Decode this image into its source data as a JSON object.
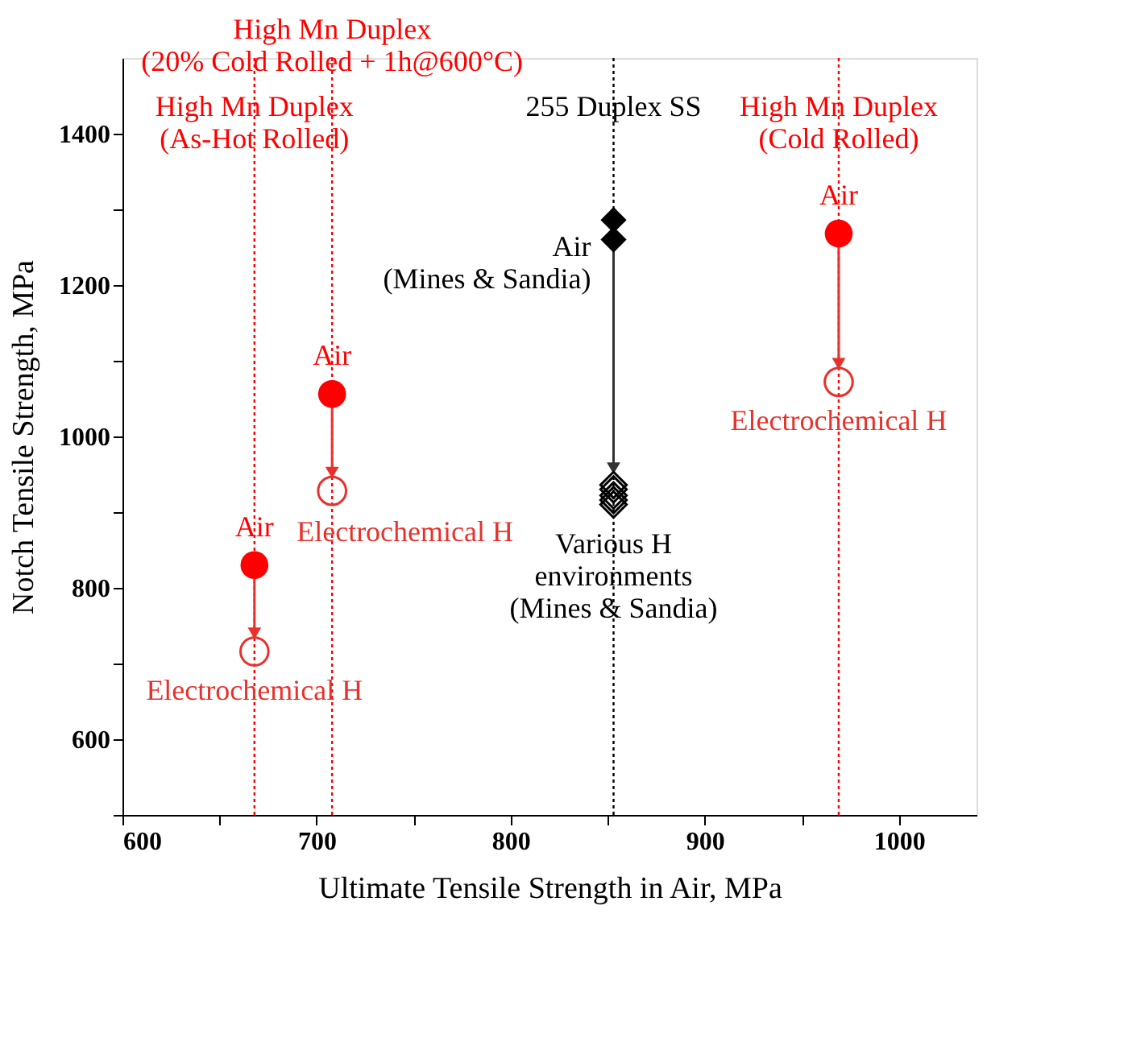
{
  "chart_data": {
    "type": "scatter",
    "xlabel": "Ultimate Tensile Strength in Air, MPa",
    "ylabel": "Notch Tensile Strength, MPa",
    "xlim": [
      600,
      1040
    ],
    "ylim": [
      500,
      1500
    ],
    "xticks": [
      600,
      {
        "value": 650,
        "label": null
      },
      700,
      {
        "value": 750,
        "label": null
      },
      800,
      {
        "value": 850,
        "label": null
      },
      900,
      {
        "value": 950,
        "label": null
      },
      1000
    ],
    "yticks": [
      {
        "value": 500,
        "label": null
      },
      600,
      {
        "value": 700,
        "label": null
      },
      800,
      {
        "value": 900,
        "label": null
      },
      1000,
      {
        "value": 1100,
        "label": null
      },
      1200,
      {
        "value": 1300,
        "label": null
      },
      1400
    ],
    "grid": false,
    "series": [
      {
        "type": "line",
        "color": "#e8312b",
        "x": [
          668,
          668
        ],
        "values": [
          830,
          740
        ]
      },
      {
        "type": "line",
        "color": "#e8312b",
        "x": [
          708,
          708
        ],
        "values": [
          1056,
          952
        ]
      },
      {
        "type": "line",
        "color": "#e8312b",
        "x": [
          969,
          969
        ],
        "values": [
          1268,
          1096
        ]
      },
      {
        "type": "line",
        "color": "#333333",
        "x": [
          853,
          853
        ],
        "values": [
          1260,
          958
        ]
      },
      {
        "marker": "circle",
        "color": "#ff0000",
        "x": [
          668,
          708,
          969
        ],
        "values": [
          830,
          1056,
          1268
        ]
      },
      {
        "marker": "circle",
        "color": "#e8312b",
        "x": [
          668,
          708,
          969
        ],
        "values": [
          716,
          928,
          1072
        ]
      },
      {
        "marker": "diamond",
        "color": "#000000",
        "x": [
          853,
          853
        ],
        "values": [
          1286,
          1260
        ]
      },
      {
        "marker": "diamond",
        "color": "#000000",
        "x": [
          853,
          853,
          853,
          853,
          853
        ],
        "values": [
          936,
          930,
          922,
          916,
          910
        ]
      }
    ],
    "ref_lines": [
      {
        "axis": "x",
        "value": 668,
        "label": "High Mn Duplex\n(As-Hot Rolled)",
        "color": "#ff0000",
        "line_style": "dotted"
      },
      {
        "axis": "x",
        "value": 708,
        "label": "High Mn Duplex\n(20% Cold Rolled + 1h@600°C)",
        "color": "#ff0000",
        "line_style": "dotted"
      },
      {
        "axis": "x",
        "value": 853,
        "label": "255 Duplex SS",
        "color": "#000000",
        "line_style": "dotted"
      },
      {
        "axis": "x",
        "value": 969,
        "label": "High Mn Duplex\n(Cold Rolled)",
        "color": "#ff0000",
        "line_style": "dotted"
      }
    ],
    "annotations": [
      {
        "text": "Air",
        "x": 668,
        "y": 830
      },
      {
        "text": "Air",
        "x": 708,
        "y": 1056
      },
      {
        "text": "Air",
        "x": 969,
        "y": 1268
      },
      {
        "text": "Electrochemical H",
        "x": 668,
        "y": 716
      },
      {
        "text": "Electrochemical H",
        "x": 708,
        "y": 928
      },
      {
        "text": "Electrochemical H",
        "x": 969,
        "y": 1072
      },
      {
        "text": "Air\n(Mines & Sandia)",
        "x": 853,
        "y": 1260
      },
      {
        "text": "Various H\nenvironments\n(Mines & Sandia)",
        "x": 853,
        "y": 910
      }
    ]
  }
}
